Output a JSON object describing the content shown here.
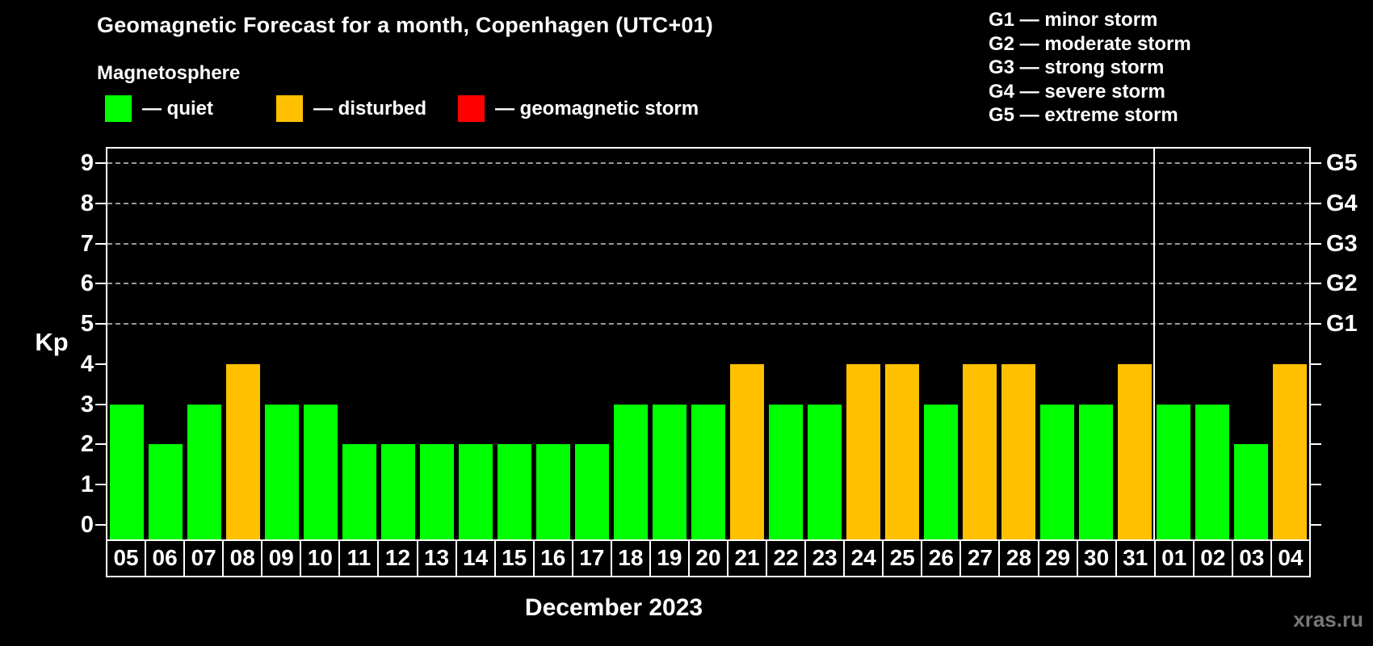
{
  "title": "Geomagnetic Forecast for a month, Copenhagen (UTC+01)",
  "subtitle": "Magnetosphere",
  "status_legend": [
    {
      "key": "quiet",
      "label": "— quiet"
    },
    {
      "key": "disturbed",
      "label": "— disturbed"
    },
    {
      "key": "storm",
      "label": "— geomagnetic storm"
    }
  ],
  "g_legend": [
    "G1 — minor storm",
    "G2 — moderate storm",
    "G3 — strong storm",
    "G4 — severe storm",
    "G5 — extreme storm"
  ],
  "chart_data": {
    "type": "bar",
    "title": "Geomagnetic Forecast for a month, Copenhagen (UTC+01)",
    "ylabel": "Kp",
    "xlabel": "December 2023",
    "ylim": [
      0,
      9
    ],
    "yticks": [
      0,
      1,
      2,
      3,
      4,
      5,
      6,
      7,
      8,
      9
    ],
    "grid_values": [
      5,
      6,
      7,
      8,
      9
    ],
    "grid_style": "dashed horizontal lines at storm levels only",
    "legend_position": "top-left",
    "right_axis": [
      {
        "value": 5,
        "label": "G1"
      },
      {
        "value": 6,
        "label": "G2"
      },
      {
        "value": 7,
        "label": "G3"
      },
      {
        "value": 8,
        "label": "G4"
      },
      {
        "value": 9,
        "label": "G5"
      }
    ],
    "categories": [
      "05",
      "06",
      "07",
      "08",
      "09",
      "10",
      "11",
      "12",
      "13",
      "14",
      "15",
      "16",
      "17",
      "18",
      "19",
      "20",
      "21",
      "22",
      "23",
      "24",
      "25",
      "26",
      "27",
      "28",
      "29",
      "30",
      "31",
      "01",
      "02",
      "03",
      "04"
    ],
    "values": [
      3,
      2,
      3,
      4,
      3,
      3,
      2,
      2,
      2,
      2,
      2,
      2,
      2,
      3,
      3,
      3,
      4,
      3,
      3,
      4,
      4,
      3,
      4,
      4,
      3,
      3,
      4,
      3,
      3,
      2,
      4
    ],
    "statuses": [
      "quiet",
      "quiet",
      "quiet",
      "disturbed",
      "quiet",
      "quiet",
      "quiet",
      "quiet",
      "quiet",
      "quiet",
      "quiet",
      "quiet",
      "quiet",
      "quiet",
      "quiet",
      "quiet",
      "disturbed",
      "quiet",
      "quiet",
      "disturbed",
      "disturbed",
      "quiet",
      "disturbed",
      "disturbed",
      "quiet",
      "quiet",
      "disturbed",
      "quiet",
      "quiet",
      "quiet",
      "disturbed"
    ],
    "month_boundary_index": 27
  },
  "watermark": "xras.ru",
  "colors": {
    "background": "#000000",
    "quiet": "#00ff00",
    "disturbed": "#ffc000",
    "storm": "#ff0000",
    "axis": "#ffffff",
    "grid": "#999999",
    "text": "#ffffff",
    "watermark": "#787878"
  }
}
